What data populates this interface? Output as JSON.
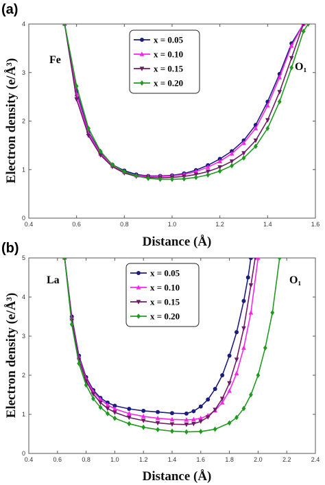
{
  "chart_data": [
    {
      "type": "line",
      "panel_label": "(a)",
      "xlabel": "Distance (Å)",
      "ylabel": "Electron density (e/Å³)",
      "xlim": [
        0.4,
        1.6
      ],
      "ylim": [
        0,
        4
      ],
      "xticks": [
        "0.4",
        "0.6",
        "0.8",
        "1.0",
        "1.2",
        "1.4",
        "1.6"
      ],
      "yticks": [
        "0",
        "1",
        "2",
        "3",
        "4"
      ],
      "annotations": [
        "Fe",
        "O₁"
      ],
      "legend_position": "top-center",
      "grid": false,
      "series": [
        {
          "name": "x = 0.05",
          "color": "#1c1c7c",
          "marker": "circle",
          "x": [
            0.55,
            0.6,
            0.65,
            0.7,
            0.75,
            0.8,
            0.85,
            0.9,
            0.95,
            1.0,
            1.05,
            1.1,
            1.15,
            1.2,
            1.25,
            1.3,
            1.35,
            1.4,
            1.45,
            1.5,
            1.55
          ],
          "y": [
            4.0,
            2.62,
            1.78,
            1.35,
            1.1,
            0.98,
            0.9,
            0.87,
            0.87,
            0.88,
            0.92,
            0.99,
            1.09,
            1.22,
            1.38,
            1.6,
            1.92,
            2.4,
            2.97,
            3.6,
            4.0
          ]
        },
        {
          "name": "x = 0.10",
          "color": "#ff22ee",
          "marker": "triangle-up",
          "x": [
            0.55,
            0.6,
            0.65,
            0.7,
            0.75,
            0.8,
            0.85,
            0.9,
            0.95,
            1.0,
            1.05,
            1.1,
            1.15,
            1.2,
            1.25,
            1.3,
            1.35,
            1.4,
            1.45,
            1.5,
            1.55
          ],
          "y": [
            4.0,
            2.55,
            1.75,
            1.33,
            1.08,
            0.95,
            0.88,
            0.86,
            0.86,
            0.87,
            0.9,
            0.96,
            1.05,
            1.17,
            1.33,
            1.55,
            1.85,
            2.32,
            2.9,
            3.55,
            4.0
          ]
        },
        {
          "name": "x = 0.15",
          "color": "#6d1a66",
          "marker": "triangle-down",
          "x": [
            0.55,
            0.6,
            0.65,
            0.7,
            0.75,
            0.8,
            0.85,
            0.9,
            0.95,
            1.0,
            1.05,
            1.1,
            1.15,
            1.2,
            1.25,
            1.3,
            1.35,
            1.4,
            1.45,
            1.5,
            1.55
          ],
          "y": [
            4.0,
            2.45,
            1.7,
            1.3,
            1.06,
            0.93,
            0.86,
            0.84,
            0.83,
            0.84,
            0.86,
            0.9,
            0.96,
            1.05,
            1.17,
            1.34,
            1.6,
            2.02,
            2.6,
            3.3,
            4.0
          ]
        },
        {
          "name": "x = 0.20",
          "color": "#1f9a1f",
          "marker": "diamond",
          "x": [
            0.55,
            0.6,
            0.65,
            0.7,
            0.75,
            0.8,
            0.85,
            0.9,
            0.95,
            1.0,
            1.05,
            1.1,
            1.15,
            1.2,
            1.25,
            1.3,
            1.35,
            1.4,
            1.45,
            1.5,
            1.55,
            1.57
          ],
          "y": [
            4.0,
            2.72,
            1.85,
            1.38,
            1.1,
            0.96,
            0.87,
            0.82,
            0.8,
            0.8,
            0.81,
            0.84,
            0.89,
            0.97,
            1.08,
            1.24,
            1.48,
            1.85,
            2.4,
            3.1,
            3.85,
            4.0
          ]
        }
      ]
    },
    {
      "type": "line",
      "panel_label": "(b)",
      "xlabel": "Distance (Å)",
      "ylabel": "Electron density (e/Å³)",
      "xlim": [
        0.4,
        2.4
      ],
      "ylim": [
        0,
        5
      ],
      "xticks": [
        "0.4",
        "0.6",
        "0.8",
        "1.0",
        "1.2",
        "1.4",
        "1.6",
        "1.8",
        "2.0",
        "2.2",
        "2.4"
      ],
      "yticks": [
        "0",
        "1",
        "2",
        "3",
        "4",
        "5"
      ],
      "annotations": [
        "La",
        "O₁"
      ],
      "legend_position": "top-center",
      "grid": false,
      "series": [
        {
          "name": "x = 0.05",
          "color": "#1c1c7c",
          "marker": "circle",
          "x": [
            0.65,
            0.7,
            0.75,
            0.8,
            0.85,
            0.9,
            0.95,
            1.0,
            1.1,
            1.2,
            1.3,
            1.4,
            1.5,
            1.55,
            1.6,
            1.65,
            1.7,
            1.75,
            1.8,
            1.85,
            1.9,
            1.93,
            1.95
          ],
          "y": [
            5.0,
            3.5,
            2.5,
            1.95,
            1.62,
            1.42,
            1.3,
            1.22,
            1.14,
            1.09,
            1.06,
            1.03,
            1.02,
            1.08,
            1.2,
            1.38,
            1.65,
            2.0,
            2.5,
            3.1,
            3.9,
            4.5,
            5.0
          ]
        },
        {
          "name": "x = 0.10",
          "color": "#ff22ee",
          "marker": "triangle-up",
          "x": [
            0.65,
            0.7,
            0.75,
            0.8,
            0.85,
            0.9,
            0.95,
            1.0,
            1.1,
            1.2,
            1.3,
            1.4,
            1.5,
            1.55,
            1.6,
            1.65,
            1.7,
            1.75,
            1.8,
            1.85,
            1.9,
            1.95,
            2.0
          ],
          "y": [
            5.0,
            3.45,
            2.45,
            1.9,
            1.58,
            1.38,
            1.24,
            1.14,
            1.02,
            0.95,
            0.9,
            0.87,
            0.86,
            0.87,
            0.9,
            0.97,
            1.1,
            1.3,
            1.6,
            2.05,
            2.7,
            3.6,
            5.0
          ]
        },
        {
          "name": "x = 0.15",
          "color": "#6d1a66",
          "marker": "triangle-down",
          "x": [
            0.65,
            0.7,
            0.75,
            0.8,
            0.85,
            0.9,
            0.95,
            1.0,
            1.1,
            1.2,
            1.3,
            1.4,
            1.5,
            1.55,
            1.6,
            1.65,
            1.7,
            1.75,
            1.8,
            1.85,
            1.9,
            1.95,
            1.98
          ],
          "y": [
            5.0,
            3.4,
            2.4,
            1.85,
            1.52,
            1.3,
            1.15,
            1.05,
            0.92,
            0.84,
            0.78,
            0.75,
            0.74,
            0.76,
            0.82,
            0.93,
            1.12,
            1.4,
            1.8,
            2.4,
            3.2,
            4.3,
            5.0
          ]
        },
        {
          "name": "x = 0.20",
          "color": "#1f9a1f",
          "marker": "diamond",
          "x": [
            0.65,
            0.7,
            0.75,
            0.8,
            0.85,
            0.9,
            0.95,
            1.0,
            1.1,
            1.2,
            1.3,
            1.4,
            1.5,
            1.6,
            1.7,
            1.8,
            1.85,
            1.9,
            1.95,
            2.0,
            2.05,
            2.1,
            2.15
          ],
          "y": [
            5.0,
            3.3,
            2.3,
            1.75,
            1.4,
            1.18,
            1.02,
            0.9,
            0.76,
            0.67,
            0.61,
            0.57,
            0.55,
            0.56,
            0.62,
            0.78,
            0.92,
            1.15,
            1.5,
            2.0,
            2.7,
            3.6,
            5.0
          ]
        }
      ]
    }
  ]
}
